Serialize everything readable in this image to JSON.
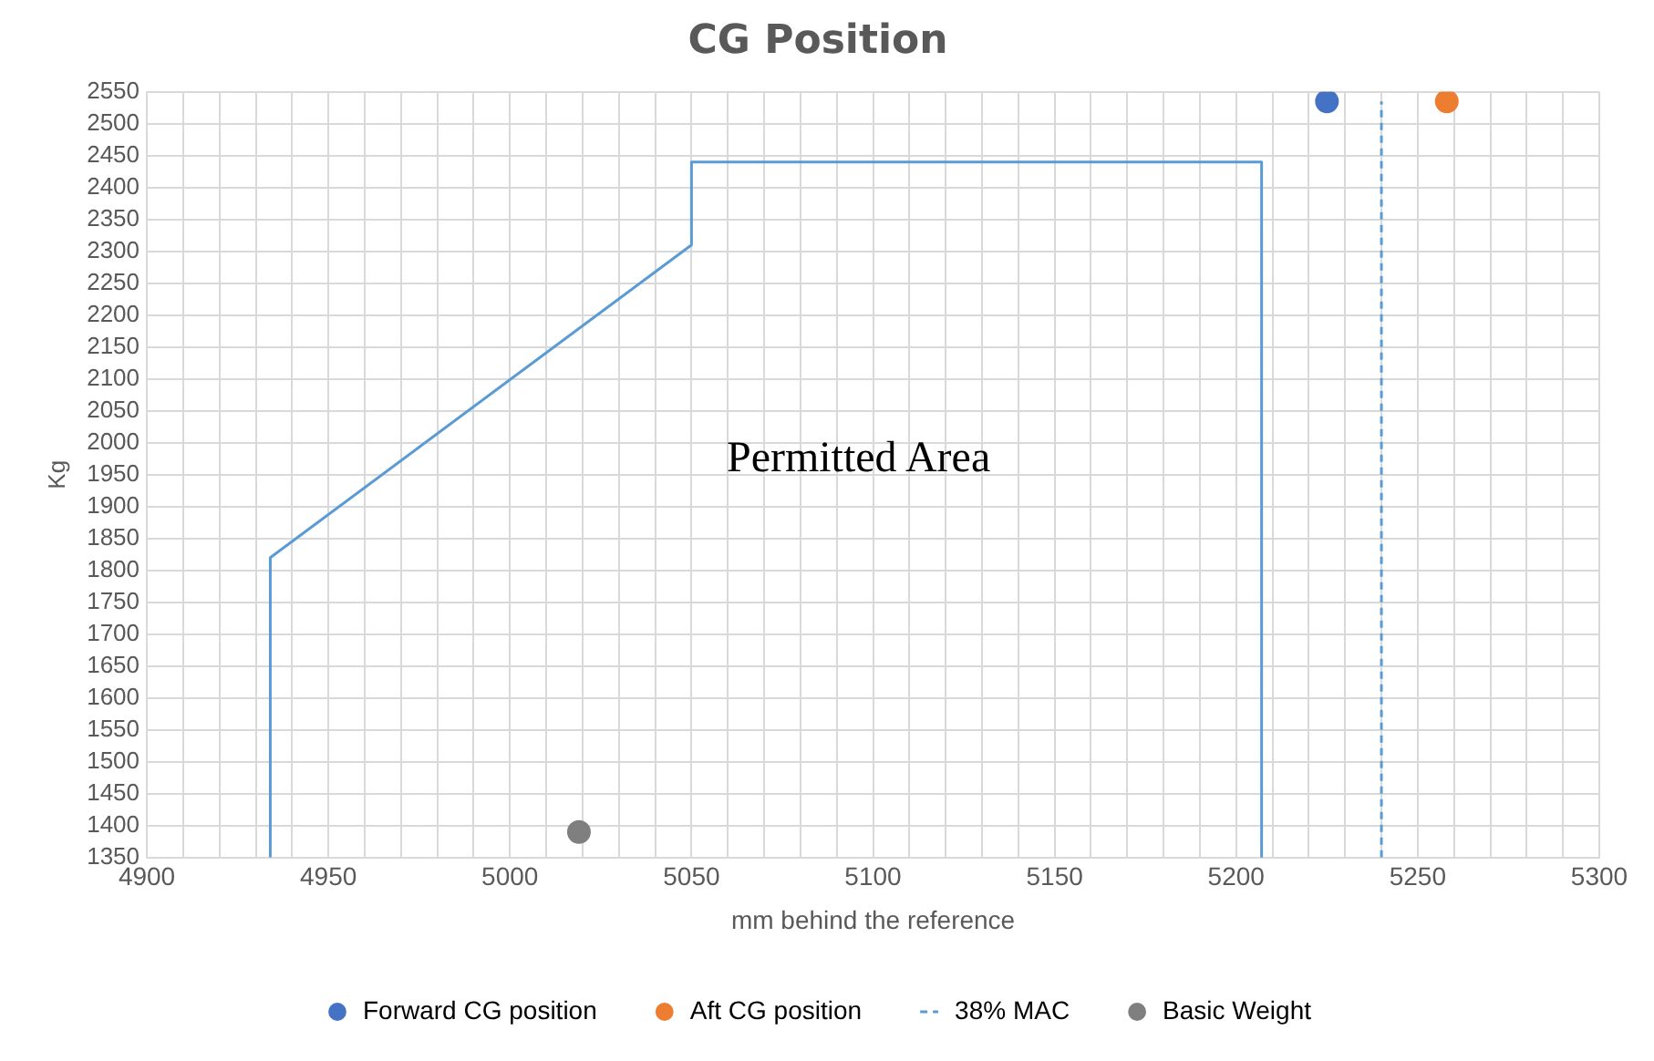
{
  "chart_data": {
    "type": "scatter",
    "title": "CG Position",
    "xlabel": "mm behind the reference",
    "ylabel": "Kg",
    "xlim": [
      4900,
      5300
    ],
    "xticks": [
      4900,
      {
        "value": 4910,
        "label": null
      },
      {
        "value": 4920,
        "label": null
      },
      {
        "value": 4930,
        "label": null
      },
      {
        "value": 4940,
        "label": null
      },
      4950,
      {
        "value": 4960,
        "label": null
      },
      {
        "value": 4970,
        "label": null
      },
      {
        "value": 4980,
        "label": null
      },
      {
        "value": 4990,
        "label": null
      },
      5000,
      {
        "value": 5010,
        "label": null
      },
      {
        "value": 5020,
        "label": null
      },
      {
        "value": 5030,
        "label": null
      },
      {
        "value": 5040,
        "label": null
      },
      5050,
      {
        "value": 5060,
        "label": null
      },
      {
        "value": 5070,
        "label": null
      },
      {
        "value": 5080,
        "label": null
      },
      {
        "value": 5090,
        "label": null
      },
      5100,
      {
        "value": 5110,
        "label": null
      },
      {
        "value": 5120,
        "label": null
      },
      {
        "value": 5130,
        "label": null
      },
      {
        "value": 5140,
        "label": null
      },
      5150,
      {
        "value": 5160,
        "label": null
      },
      {
        "value": 5170,
        "label": null
      },
      {
        "value": 5180,
        "label": null
      },
      {
        "value": 5190,
        "label": null
      },
      5200,
      {
        "value": 5210,
        "label": null
      },
      {
        "value": 5220,
        "label": null
      },
      {
        "value": 5230,
        "label": null
      },
      {
        "value": 5240,
        "label": null
      },
      5250,
      {
        "value": 5260,
        "label": null
      },
      {
        "value": 5270,
        "label": null
      },
      {
        "value": 5280,
        "label": null
      },
      {
        "value": 5290,
        "label": null
      },
      5300
    ],
    "ylim": [
      1350,
      2550
    ],
    "yticks": [
      1350,
      1400,
      1450,
      1500,
      1550,
      1600,
      1650,
      1700,
      1750,
      1800,
      1850,
      1900,
      1950,
      2000,
      2050,
      2100,
      2150,
      2200,
      2250,
      2300,
      2350,
      2400,
      2450,
      2500,
      2550
    ],
    "grid": true,
    "legend": "bottom",
    "marker": "circle",
    "series": [
      {
        "type": "line",
        "color": "#5b9bd5",
        "line_style": "solid",
        "marker": "none",
        "x": [
          4934,
          4934,
          5050,
          5050,
          5207,
          5207
        ],
        "values": [
          1350,
          1820,
          2310,
          2440,
          2440,
          1350
        ]
      },
      {
        "type": "scatter",
        "name": "Forward CG position",
        "color": "#4472c4",
        "x": [
          5225
        ],
        "values": [
          2535
        ]
      },
      {
        "type": "scatter",
        "name": "Aft CG position",
        "color": "#ed7d31",
        "x": [
          5258
        ],
        "values": [
          2535
        ]
      },
      {
        "type": "line",
        "name": "38% MAC",
        "color": "#5b9bd5",
        "line_style": "dashed",
        "marker": "none",
        "x": [
          5240,
          5240
        ],
        "values": [
          1350,
          2535
        ]
      },
      {
        "type": "scatter",
        "name": "Basic Weight",
        "color": "#7f7f7f",
        "x": [
          5019
        ],
        "values": [
          1390
        ]
      }
    ],
    "annotations": [
      "Permitted Area"
    ]
  }
}
